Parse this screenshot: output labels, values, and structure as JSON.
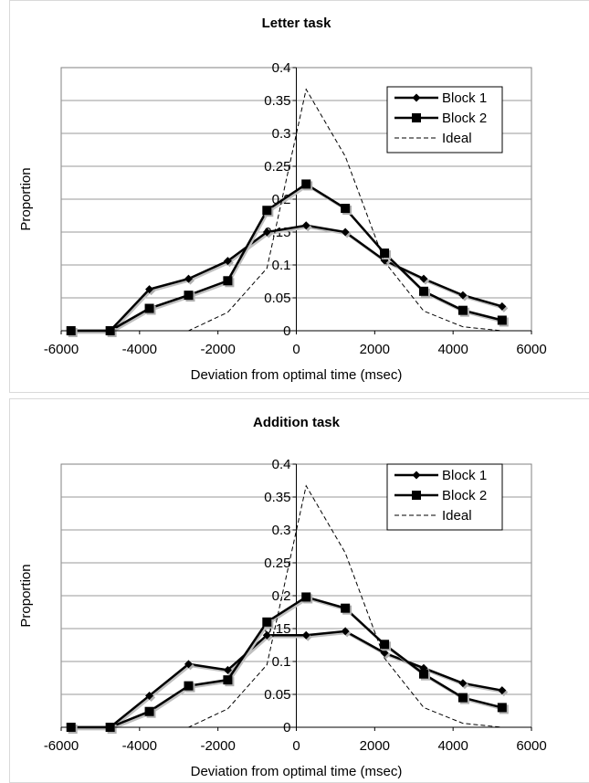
{
  "chart_data": [
    {
      "type": "line",
      "title": "Letter task",
      "xlabel": "Deviation from optimal time (msec)",
      "ylabel": "Proportion",
      "xlim": [
        -6000,
        6000
      ],
      "ylim": [
        0,
        0.4
      ],
      "x_ticks": [
        "-6000",
        "-4000",
        "-2000",
        "0",
        "2000",
        "4000",
        "6000"
      ],
      "y_ticks": [
        "0",
        "0.05",
        "0.1",
        "0.15",
        "0.2",
        "0.25",
        "0.3",
        "0.35",
        "0.4"
      ],
      "grid": "horizontal",
      "legend_position": "top-right",
      "series": [
        {
          "name": "Block 1",
          "marker": "diamond",
          "style": "solid",
          "x": [
            -5750,
            -4750,
            -3750,
            -2750,
            -1750,
            -750,
            250,
            1250,
            2250,
            3250,
            4250,
            5250
          ],
          "y": [
            0,
            0,
            0.063,
            0.079,
            0.106,
            0.15,
            0.16,
            0.15,
            0.107,
            0.079,
            0.054,
            0.037
          ]
        },
        {
          "name": "Block 2",
          "marker": "square",
          "style": "solid",
          "x": [
            -5750,
            -4750,
            -3750,
            -2750,
            -1750,
            -750,
            250,
            1250,
            2250,
            3250,
            4250,
            5250
          ],
          "y": [
            0,
            0,
            0.034,
            0.054,
            0.076,
            0.183,
            0.223,
            0.186,
            0.118,
            0.06,
            0.031,
            0.016
          ]
        },
        {
          "name": "Ideal",
          "marker": "none",
          "style": "dashed",
          "x": [
            -5750,
            -4750,
            -3750,
            -2750,
            -1750,
            -750,
            250,
            1250,
            2250,
            3250,
            4250,
            5250
          ],
          "y": [
            0,
            0,
            0,
            0,
            0.028,
            0.095,
            0.367,
            0.265,
            0.105,
            0.03,
            0.006,
            0
          ]
        }
      ]
    },
    {
      "type": "line",
      "title": "Addition task",
      "xlabel": "Deviation from optimal time (msec)",
      "ylabel": "Proportion",
      "xlim": [
        -6000,
        6000
      ],
      "ylim": [
        0,
        0.4
      ],
      "x_ticks": [
        "-6000",
        "-4000",
        "-2000",
        "0",
        "2000",
        "4000",
        "6000"
      ],
      "y_ticks": [
        "0",
        "0.05",
        "0.1",
        "0.15",
        "0.2",
        "0.25",
        "0.3",
        "0.35",
        "0.4"
      ],
      "grid": "horizontal",
      "legend_position": "top-right",
      "series": [
        {
          "name": "Block 1",
          "marker": "diamond",
          "style": "solid",
          "x": [
            -5750,
            -4750,
            -3750,
            -2750,
            -1750,
            -750,
            250,
            1250,
            2250,
            3250,
            4250,
            5250
          ],
          "y": [
            0,
            0,
            0.048,
            0.096,
            0.087,
            0.14,
            0.14,
            0.146,
            0.113,
            0.09,
            0.067,
            0.056
          ]
        },
        {
          "name": "Block 2",
          "marker": "square",
          "style": "solid",
          "x": [
            -5750,
            -4750,
            -3750,
            -2750,
            -1750,
            -750,
            250,
            1250,
            2250,
            3250,
            4250,
            5250
          ],
          "y": [
            0,
            0,
            0.024,
            0.063,
            0.072,
            0.16,
            0.198,
            0.181,
            0.126,
            0.081,
            0.045,
            0.03
          ]
        },
        {
          "name": "Ideal",
          "marker": "none",
          "style": "dashed",
          "x": [
            -5750,
            -4750,
            -3750,
            -2750,
            -1750,
            -750,
            250,
            1250,
            2250,
            3250,
            4250,
            5250
          ],
          "y": [
            0,
            0,
            0,
            0,
            0.028,
            0.095,
            0.367,
            0.265,
            0.105,
            0.03,
            0.006,
            0
          ]
        }
      ]
    }
  ]
}
